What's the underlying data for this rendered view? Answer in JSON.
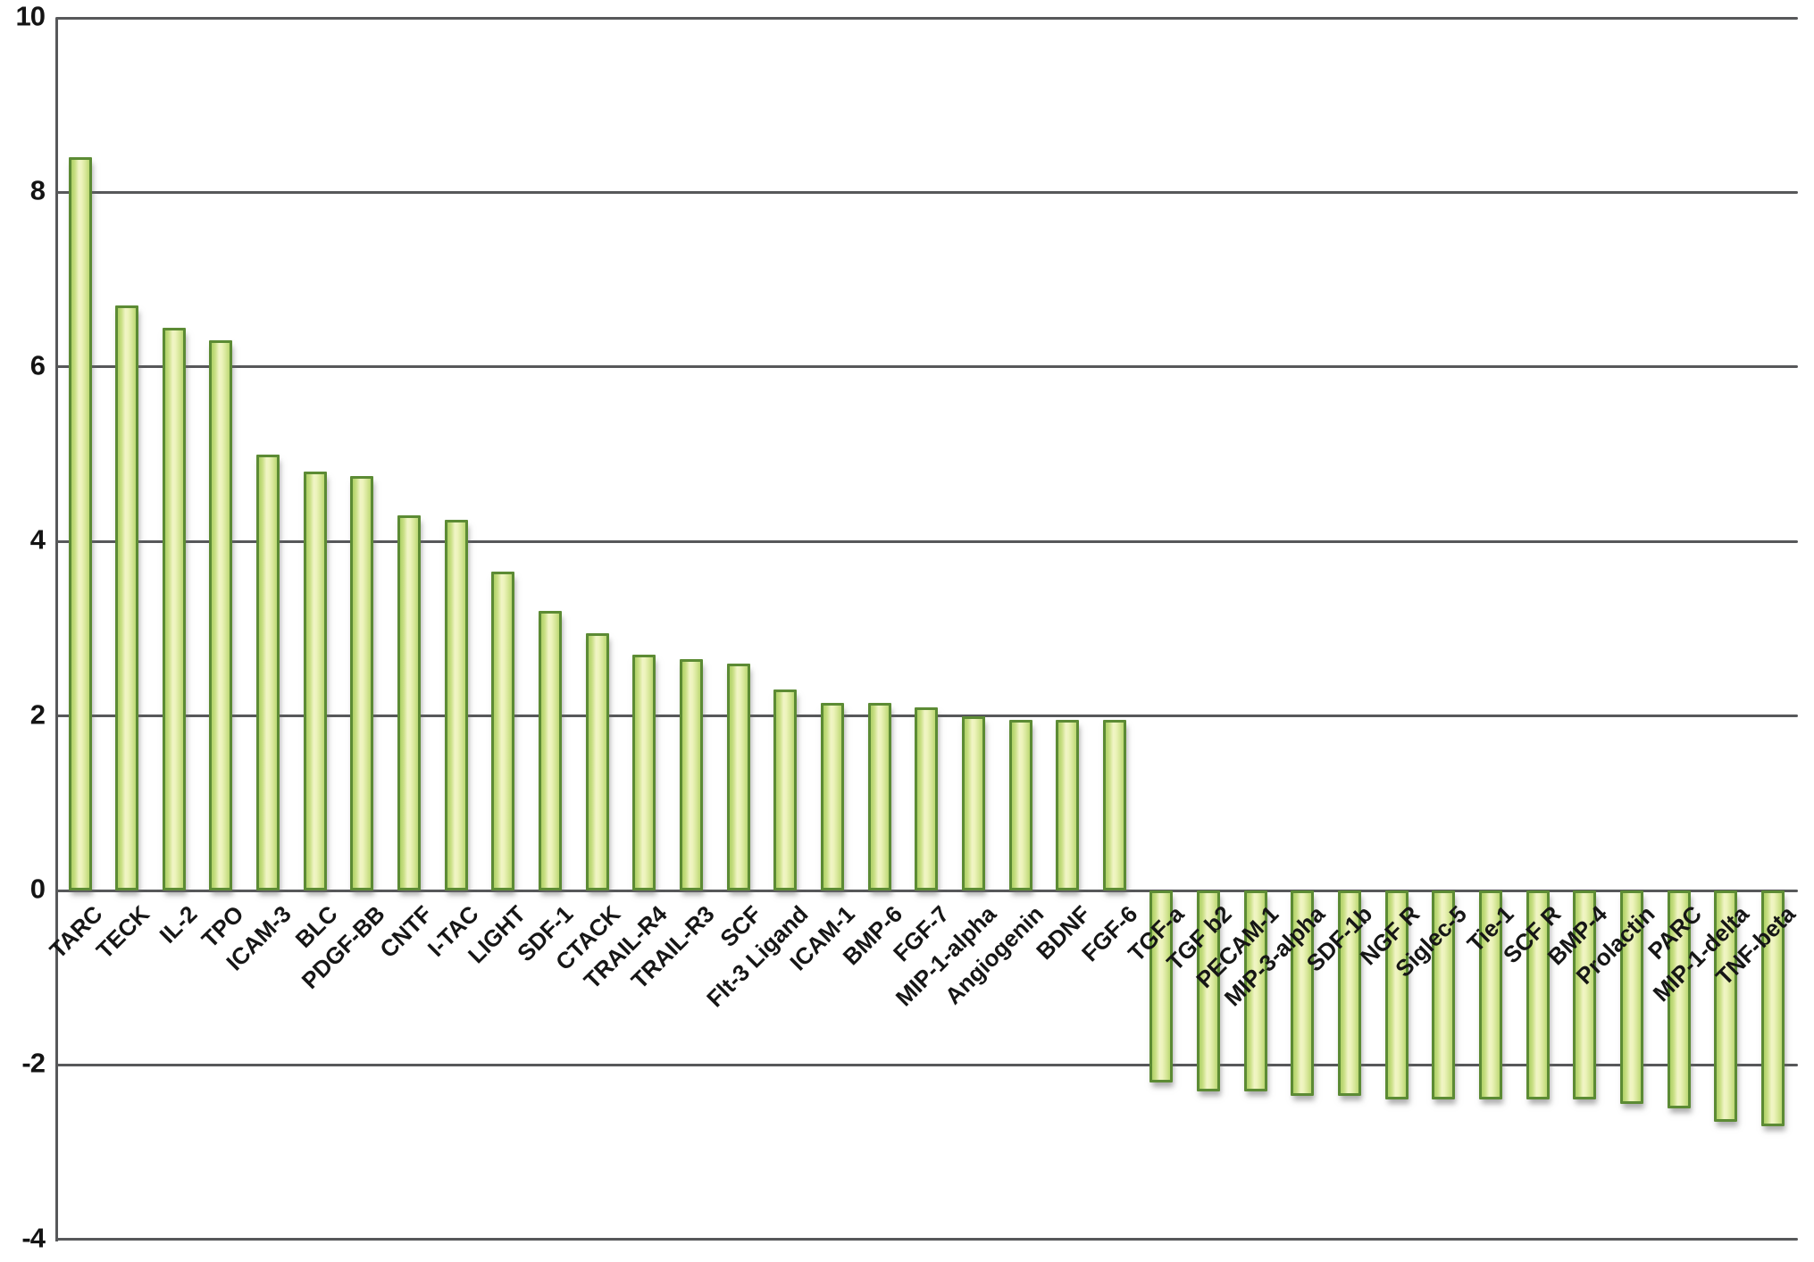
{
  "chart_data": {
    "type": "bar",
    "title": "",
    "xlabel": "",
    "ylabel": "",
    "ylim": [
      -4,
      10
    ],
    "yticks": [
      10,
      8,
      6,
      4,
      2,
      0,
      -2,
      -4
    ],
    "grid": "horizontal",
    "legend": "none",
    "categories": [
      "TARC",
      "TECK",
      "IL-2",
      "TPO",
      "ICAM-3",
      "BLC",
      "PDGF-BB",
      "CNTF",
      "I-TAC",
      "LIGHT",
      "SDF-1",
      "CTACK",
      "TRAIL-R4",
      "TRAIL-R3",
      "SCF",
      "Flt-3 Ligand",
      "ICAM-1",
      "BMP-6",
      "FGF-7",
      "MIP-1-alpha",
      "Angiogenin",
      "BDNF",
      "FGF-6",
      "TGF-a",
      "TGF b2",
      "PECAM-1",
      "MIP-3-alpha",
      "SDF-1b",
      "NGF R",
      "Siglec-5",
      "Tie-1",
      "SCF R",
      "BMP-4",
      "Prolactin",
      "PARC",
      "MIP-1-delta",
      "TNF-beta"
    ],
    "values": [
      8.4,
      6.7,
      6.45,
      6.3,
      5.0,
      4.8,
      4.75,
      4.3,
      4.25,
      3.65,
      3.2,
      2.95,
      2.7,
      2.65,
      2.6,
      2.3,
      2.15,
      2.15,
      2.1,
      2.0,
      1.95,
      1.95,
      1.95,
      -2.2,
      -2.3,
      -2.3,
      -2.35,
      -2.35,
      -2.4,
      -2.4,
      -2.4,
      -2.4,
      -2.4,
      -2.45,
      -2.5,
      -2.65,
      -2.7
    ]
  },
  "colors": {
    "background": "#ffffff",
    "axis_line": "#57585a",
    "bar_border": "#5c8b34",
    "bar_fill_light": "#f1f5c6",
    "bar_fill_dark": "#afd166",
    "text": "#141414"
  }
}
